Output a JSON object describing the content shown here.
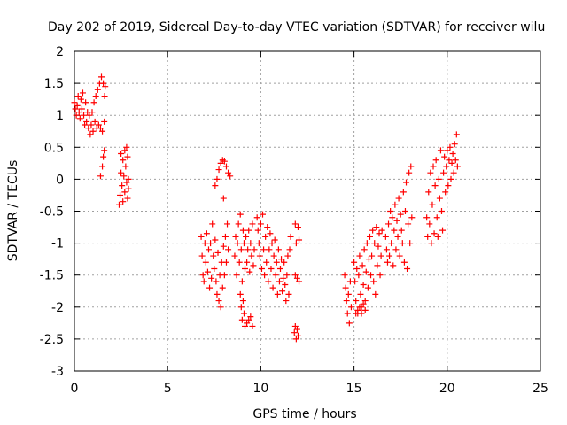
{
  "chart_data": {
    "type": "scatter",
    "title": "Day 202 of 2019, Sidereal Day-to-day VTEC variation (SDTVAR) for receiver wilu",
    "xlabel": "GPS time / hours",
    "ylabel": "SDTVAR / TECUs",
    "xlim": [
      0,
      25
    ],
    "ylim": [
      -3,
      2
    ],
    "xticks": [
      0,
      5,
      10,
      15,
      20,
      25
    ],
    "yticks": [
      2,
      1.5,
      1,
      0.5,
      0,
      -0.5,
      -1,
      -1.5,
      -2,
      -2.5,
      -3
    ],
    "xtick_labels": [
      "0",
      "5",
      "10",
      "15",
      "20",
      "25"
    ],
    "ytick_labels": [
      "2",
      "1.5",
      "1",
      "0.5",
      "0",
      "-0.5",
      "-1",
      "-1.5",
      "-2",
      "-2.5",
      "-3"
    ],
    "grid": true,
    "marker": "+",
    "color": "#ff0000",
    "series": [
      {
        "points": [
          [
            0.0,
            1.2
          ],
          [
            0.05,
            1.1
          ],
          [
            0.1,
            1.0
          ],
          [
            0.15,
            1.15
          ],
          [
            0.2,
            1.3
          ],
          [
            0.25,
            1.05
          ],
          [
            0.3,
            0.95
          ],
          [
            0.35,
            1.25
          ],
          [
            0.4,
            1.1
          ],
          [
            0.45,
            1.35
          ],
          [
            0.5,
            1.0
          ],
          [
            0.55,
            0.85
          ],
          [
            0.6,
            1.2
          ],
          [
            0.65,
            0.9
          ],
          [
            0.7,
            1.05
          ],
          [
            0.75,
            0.8
          ],
          [
            0.8,
            1.0
          ],
          [
            0.85,
            0.7
          ],
          [
            0.9,
            0.85
          ],
          [
            0.95,
            1.05
          ],
          [
            1.0,
            0.75
          ],
          [
            1.05,
            1.2
          ],
          [
            1.1,
            0.9
          ],
          [
            1.15,
            1.3
          ],
          [
            1.2,
            0.8
          ],
          [
            1.25,
            1.4
          ],
          [
            1.3,
            0.85
          ],
          [
            1.35,
            1.5
          ],
          [
            1.4,
            0.8
          ],
          [
            1.45,
            1.6
          ],
          [
            1.5,
            0.75
          ],
          [
            1.55,
            1.5
          ],
          [
            1.6,
            0.9
          ],
          [
            1.62,
            1.3
          ],
          [
            1.65,
            1.45
          ],
          [
            1.4,
            0.05
          ],
          [
            1.5,
            0.2
          ],
          [
            1.55,
            0.35
          ],
          [
            1.6,
            0.45
          ],
          [
            2.4,
            -0.4
          ],
          [
            2.45,
            -0.25
          ],
          [
            2.5,
            0.1
          ],
          [
            2.5,
            0.4
          ],
          [
            2.55,
            -0.1
          ],
          [
            2.6,
            0.3
          ],
          [
            2.6,
            -0.35
          ],
          [
            2.65,
            0.05
          ],
          [
            2.7,
            0.45
          ],
          [
            2.7,
            -0.2
          ],
          [
            2.75,
            0.2
          ],
          [
            2.8,
            -0.05
          ],
          [
            2.8,
            0.5
          ],
          [
            2.85,
            -0.3
          ],
          [
            2.85,
            0.35
          ],
          [
            2.9,
            0.0
          ],
          [
            2.9,
            -0.15
          ],
          [
            6.8,
            -0.9
          ],
          [
            6.85,
            -1.2
          ],
          [
            6.9,
            -1.5
          ],
          [
            6.95,
            -1.6
          ],
          [
            7.0,
            -1.0
          ],
          [
            7.05,
            -1.3
          ],
          [
            7.1,
            -0.85
          ],
          [
            7.15,
            -1.45
          ],
          [
            7.2,
            -1.1
          ],
          [
            7.25,
            -1.7
          ],
          [
            7.3,
            -1.0
          ],
          [
            7.35,
            -1.55
          ],
          [
            7.4,
            -0.7
          ],
          [
            7.45,
            -1.2
          ],
          [
            7.5,
            -1.4
          ],
          [
            7.55,
            -0.95
          ],
          [
            7.6,
            -1.6
          ],
          [
            7.65,
            -1.8
          ],
          [
            7.7,
            -1.15
          ],
          [
            7.75,
            -1.9
          ],
          [
            7.8,
            -1.5
          ],
          [
            7.85,
            -2.0
          ],
          [
            7.9,
            -1.3
          ],
          [
            7.95,
            -1.7
          ],
          [
            8.0,
            -1.05
          ],
          [
            8.05,
            -1.5
          ],
          [
            8.1,
            -0.9
          ],
          [
            8.15,
            -1.3
          ],
          [
            8.2,
            -0.7
          ],
          [
            8.25,
            -1.1
          ],
          [
            7.55,
            -0.1
          ],
          [
            7.65,
            0.0
          ],
          [
            7.75,
            0.15
          ],
          [
            7.85,
            0.25
          ],
          [
            7.95,
            0.3
          ],
          [
            8.05,
            0.28
          ],
          [
            8.15,
            0.2
          ],
          [
            8.25,
            0.1
          ],
          [
            8.35,
            0.05
          ],
          [
            8.0,
            -0.3
          ],
          [
            8.6,
            -1.2
          ],
          [
            8.65,
            -0.9
          ],
          [
            8.7,
            -1.5
          ],
          [
            8.75,
            -1.0
          ],
          [
            8.8,
            -0.7
          ],
          [
            8.85,
            -1.3
          ],
          [
            8.9,
            -0.55
          ],
          [
            8.95,
            -1.1
          ],
          [
            9.0,
            -1.6
          ],
          [
            9.05,
            -0.8
          ],
          [
            9.1,
            -1.0
          ],
          [
            9.15,
            -1.4
          ],
          [
            9.2,
            -0.9
          ],
          [
            9.25,
            -1.3
          ],
          [
            9.3,
            -1.1
          ],
          [
            9.35,
            -0.8
          ],
          [
            9.4,
            -1.45
          ],
          [
            9.45,
            -1.0
          ],
          [
            9.5,
            -1.2
          ],
          [
            9.55,
            -0.7
          ],
          [
            9.6,
            -1.35
          ],
          [
            9.65,
            -1.1
          ],
          [
            8.9,
            -1.8
          ],
          [
            8.95,
            -2.0
          ],
          [
            9.0,
            -2.2
          ],
          [
            9.05,
            -1.9
          ],
          [
            9.1,
            -2.1
          ],
          [
            9.15,
            -2.3
          ],
          [
            9.25,
            -2.25
          ],
          [
            9.35,
            -2.2
          ],
          [
            9.45,
            -2.15
          ],
          [
            9.55,
            -2.3
          ],
          [
            9.8,
            -0.6
          ],
          [
            9.85,
            -0.8
          ],
          [
            9.9,
            -1.0
          ],
          [
            9.95,
            -1.2
          ],
          [
            10.0,
            -0.7
          ],
          [
            10.05,
            -1.4
          ],
          [
            10.1,
            -0.55
          ],
          [
            10.15,
            -1.1
          ],
          [
            10.2,
            -1.5
          ],
          [
            10.25,
            -0.9
          ],
          [
            10.3,
            -1.3
          ],
          [
            10.35,
            -0.75
          ],
          [
            10.4,
            -1.6
          ],
          [
            10.45,
            -1.1
          ],
          [
            10.5,
            -0.85
          ],
          [
            10.55,
            -1.4
          ],
          [
            10.6,
            -1.0
          ],
          [
            10.65,
            -1.7
          ],
          [
            10.7,
            -1.2
          ],
          [
            10.75,
            -0.95
          ],
          [
            10.8,
            -1.5
          ],
          [
            10.85,
            -1.3
          ],
          [
            10.9,
            -1.8
          ],
          [
            10.95,
            -1.1
          ],
          [
            11.0,
            -1.6
          ],
          [
            11.05,
            -1.4
          ],
          [
            11.1,
            -1.25
          ],
          [
            11.15,
            -1.75
          ],
          [
            11.2,
            -1.55
          ],
          [
            11.25,
            -1.3
          ],
          [
            11.3,
            -1.65
          ],
          [
            11.35,
            -1.9
          ],
          [
            11.4,
            -1.5
          ],
          [
            11.45,
            -1.2
          ],
          [
            11.5,
            -1.8
          ],
          [
            11.55,
            -1.1
          ],
          [
            11.6,
            -0.9
          ],
          [
            11.85,
            -0.7
          ],
          [
            11.9,
            -1.0
          ],
          [
            12.0,
            -0.75
          ],
          [
            12.05,
            -0.95
          ],
          [
            11.85,
            -1.5
          ],
          [
            11.95,
            -1.55
          ],
          [
            12.05,
            -1.6
          ],
          [
            11.8,
            -2.4
          ],
          [
            11.85,
            -2.3
          ],
          [
            11.9,
            -2.5
          ],
          [
            11.95,
            -2.35
          ],
          [
            12.0,
            -2.45
          ],
          [
            14.5,
            -1.5
          ],
          [
            14.55,
            -1.7
          ],
          [
            14.6,
            -1.9
          ],
          [
            14.65,
            -2.1
          ],
          [
            14.7,
            -1.8
          ],
          [
            14.75,
            -2.25
          ],
          [
            14.8,
            -1.6
          ],
          [
            14.85,
            -2.0
          ],
          [
            15.0,
            -1.3
          ],
          [
            15.05,
            -1.6
          ],
          [
            15.1,
            -1.9
          ],
          [
            15.15,
            -1.4
          ],
          [
            15.2,
            -2.1
          ],
          [
            15.25,
            -1.5
          ],
          [
            15.3,
            -1.2
          ],
          [
            15.35,
            -1.8
          ],
          [
            15.4,
            -2.0
          ],
          [
            15.45,
            -1.35
          ],
          [
            15.5,
            -1.65
          ],
          [
            15.55,
            -1.1
          ],
          [
            15.6,
            -1.9
          ],
          [
            15.65,
            -1.45
          ],
          [
            15.7,
            -1.0
          ],
          [
            15.75,
            -1.7
          ],
          [
            15.8,
            -1.25
          ],
          [
            15.85,
            -0.9
          ],
          [
            15.9,
            -1.5
          ],
          [
            15.95,
            -1.2
          ],
          [
            16.0,
            -0.8
          ],
          [
            16.05,
            -1.6
          ],
          [
            16.1,
            -1.0
          ],
          [
            16.15,
            -1.8
          ],
          [
            16.2,
            -0.75
          ],
          [
            16.25,
            -1.35
          ],
          [
            16.3,
            -1.05
          ],
          [
            16.35,
            -0.85
          ],
          [
            16.4,
            -1.5
          ],
          [
            16.45,
            -1.2
          ],
          [
            16.5,
            -0.8
          ],
          [
            15.1,
            -2.1
          ],
          [
            15.2,
            -2.05
          ],
          [
            15.3,
            -2.0
          ],
          [
            15.4,
            -2.1
          ],
          [
            15.5,
            -1.95
          ],
          [
            15.6,
            -2.05
          ],
          [
            16.7,
            -0.9
          ],
          [
            16.75,
            -1.1
          ],
          [
            16.8,
            -1.3
          ],
          [
            16.85,
            -0.7
          ],
          [
            16.9,
            -1.2
          ],
          [
            16.95,
            -0.5
          ],
          [
            17.0,
            -1.0
          ],
          [
            17.05,
            -0.6
          ],
          [
            17.1,
            -1.35
          ],
          [
            17.15,
            -0.8
          ],
          [
            17.2,
            -0.4
          ],
          [
            17.25,
            -1.1
          ],
          [
            17.3,
            -0.65
          ],
          [
            17.35,
            -0.9
          ],
          [
            17.4,
            -0.3
          ],
          [
            17.45,
            -1.2
          ],
          [
            17.5,
            -0.55
          ],
          [
            17.55,
            -0.8
          ],
          [
            17.6,
            -1.0
          ],
          [
            17.65,
            -0.2
          ],
          [
            17.7,
            -1.3
          ],
          [
            17.75,
            -0.5
          ],
          [
            17.8,
            -0.05
          ],
          [
            17.85,
            -1.4
          ],
          [
            17.9,
            -0.7
          ],
          [
            17.95,
            0.1
          ],
          [
            18.0,
            -1.0
          ],
          [
            18.05,
            0.2
          ],
          [
            18.1,
            -0.6
          ],
          [
            18.9,
            -0.6
          ],
          [
            18.95,
            -0.9
          ],
          [
            19.0,
            -0.2
          ],
          [
            19.05,
            -0.7
          ],
          [
            19.1,
            0.1
          ],
          [
            19.15,
            -1.0
          ],
          [
            19.2,
            -0.4
          ],
          [
            19.25,
            0.2
          ],
          [
            19.3,
            -0.85
          ],
          [
            19.35,
            -0.1
          ],
          [
            19.4,
            0.3
          ],
          [
            19.45,
            -0.6
          ],
          [
            19.5,
            -0.9
          ],
          [
            19.55,
            0.0
          ],
          [
            19.6,
            -0.3
          ],
          [
            19.65,
            0.45
          ],
          [
            19.7,
            -0.5
          ],
          [
            19.75,
            -0.8
          ],
          [
            19.8,
            0.1
          ],
          [
            19.85,
            0.35
          ],
          [
            19.9,
            -0.2
          ],
          [
            19.95,
            0.2
          ],
          [
            20.0,
            0.45
          ],
          [
            20.05,
            -0.1
          ],
          [
            20.1,
            0.3
          ],
          [
            20.15,
            0.5
          ],
          [
            20.2,
            0.0
          ],
          [
            20.25,
            0.25
          ],
          [
            20.3,
            0.4
          ],
          [
            20.35,
            0.1
          ],
          [
            20.4,
            0.55
          ],
          [
            20.45,
            0.3
          ],
          [
            20.5,
            0.7
          ],
          [
            20.55,
            0.2
          ]
        ]
      }
    ]
  }
}
